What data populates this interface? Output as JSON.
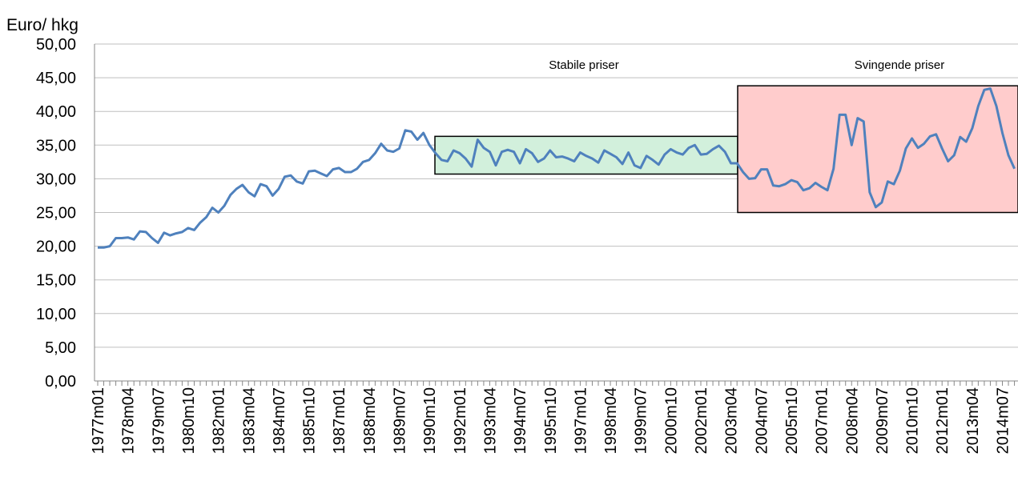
{
  "chart_data": {
    "type": "line",
    "y_label": "Euro/ hkg",
    "categories": [
      "1977m01",
      null,
      null,
      null,
      null,
      "1978m04",
      null,
      null,
      null,
      null,
      "1979m07",
      null,
      null,
      null,
      null,
      "1980m10",
      null,
      null,
      null,
      null,
      "1982m01",
      null,
      null,
      null,
      null,
      "1983m04",
      null,
      null,
      null,
      null,
      "1984m07",
      null,
      null,
      null,
      null,
      "1985m10",
      null,
      null,
      null,
      null,
      "1987m01",
      null,
      null,
      null,
      null,
      "1988m04",
      null,
      null,
      null,
      null,
      "1989m07",
      null,
      null,
      null,
      null,
      "1990m10",
      null,
      null,
      null,
      null,
      "1992m01",
      null,
      null,
      null,
      null,
      "1993m04",
      null,
      null,
      null,
      null,
      "1994m07",
      null,
      null,
      null,
      null,
      "1995m10",
      null,
      null,
      null,
      null,
      "1997m01",
      null,
      null,
      null,
      null,
      "1998m04",
      null,
      null,
      null,
      null,
      "1999m07",
      null,
      null,
      null,
      null,
      "2000m10",
      null,
      null,
      null,
      null,
      "2002m01",
      null,
      null,
      null,
      null,
      "2003m04",
      null,
      null,
      null,
      null,
      "2004m07",
      null,
      null,
      null,
      null,
      "2005m10",
      null,
      null,
      null,
      null,
      "2007m01",
      null,
      null,
      null,
      null,
      "2008m04",
      null,
      null,
      null,
      null,
      "2009m07",
      null,
      null,
      null,
      null,
      "2010m10",
      null,
      null,
      null,
      null,
      "2012m01",
      null,
      null,
      null,
      null,
      "2013m04",
      null,
      null,
      null,
      null,
      "2014m07",
      null,
      null
    ],
    "values": [
      19.8,
      19.8,
      20.0,
      21.2,
      21.2,
      21.3,
      21.0,
      22.2,
      22.1,
      21.2,
      20.5,
      22.0,
      21.6,
      21.9,
      22.1,
      22.7,
      22.4,
      23.5,
      24.3,
      25.7,
      25.0,
      26.0,
      27.6,
      28.5,
      29.1,
      28.0,
      27.4,
      29.2,
      28.9,
      27.5,
      28.5,
      30.3,
      30.5,
      29.6,
      29.3,
      31.1,
      31.2,
      30.8,
      30.4,
      31.4,
      31.6,
      31.0,
      31.0,
      31.5,
      32.5,
      32.8,
      33.8,
      35.2,
      34.2,
      34.0,
      34.5,
      37.2,
      37.0,
      35.8,
      36.8,
      35.0,
      33.8,
      32.8,
      32.6,
      34.2,
      33.8,
      33.0,
      31.8,
      35.8,
      34.6,
      34.0,
      32.0,
      34.0,
      34.3,
      34.0,
      32.3,
      34.4,
      33.8,
      32.5,
      33.0,
      34.2,
      33.2,
      33.3,
      33.0,
      32.6,
      33.9,
      33.4,
      33.0,
      32.4,
      34.2,
      33.7,
      33.2,
      32.2,
      33.9,
      32.0,
      31.6,
      33.4,
      32.8,
      32.1,
      33.6,
      34.4,
      33.9,
      33.6,
      34.6,
      35.0,
      33.6,
      33.7,
      34.4,
      34.9,
      34.0,
      32.3,
      32.3,
      31.0,
      30.0,
      30.1,
      31.4,
      31.4,
      29.0,
      28.9,
      29.2,
      29.8,
      29.5,
      28.3,
      28.6,
      29.4,
      28.8,
      28.3,
      31.5,
      39.5,
      39.5,
      35.0,
      39.0,
      38.5,
      28.0,
      25.8,
      26.5,
      29.6,
      29.2,
      31.2,
      34.5,
      36.0,
      34.6,
      35.2,
      36.3,
      36.6,
      34.5,
      32.6,
      33.5,
      36.2,
      35.5,
      37.5,
      40.8,
      43.2,
      43.4,
      40.8,
      36.8,
      33.5,
      31.5
    ],
    "color": "#4f81bd",
    "ylim": [
      0,
      50
    ],
    "yticks": [
      {
        "value": 0,
        "label": "0,00"
      },
      {
        "value": 5,
        "label": "5,00"
      },
      {
        "value": 10,
        "label": "10,00"
      },
      {
        "value": 15,
        "label": "15,00"
      },
      {
        "value": 20,
        "label": "20,00"
      },
      {
        "value": 25,
        "label": "25,00"
      },
      {
        "value": 30,
        "label": "30,00"
      },
      {
        "value": 35,
        "label": "35,00"
      },
      {
        "value": 40,
        "label": "40,00"
      },
      {
        "value": 45,
        "label": "45,00"
      },
      {
        "value": 50,
        "label": "50,00"
      }
    ],
    "grid": true,
    "annotations": [
      {
        "text": "Stabile priser",
        "ylim": [
          30.7,
          36.3
        ],
        "color": "#d2f0dc"
      },
      {
        "text": "Svingende priser",
        "ylim": [
          25.0,
          43.8
        ],
        "color": "#ffcccc"
      }
    ]
  }
}
